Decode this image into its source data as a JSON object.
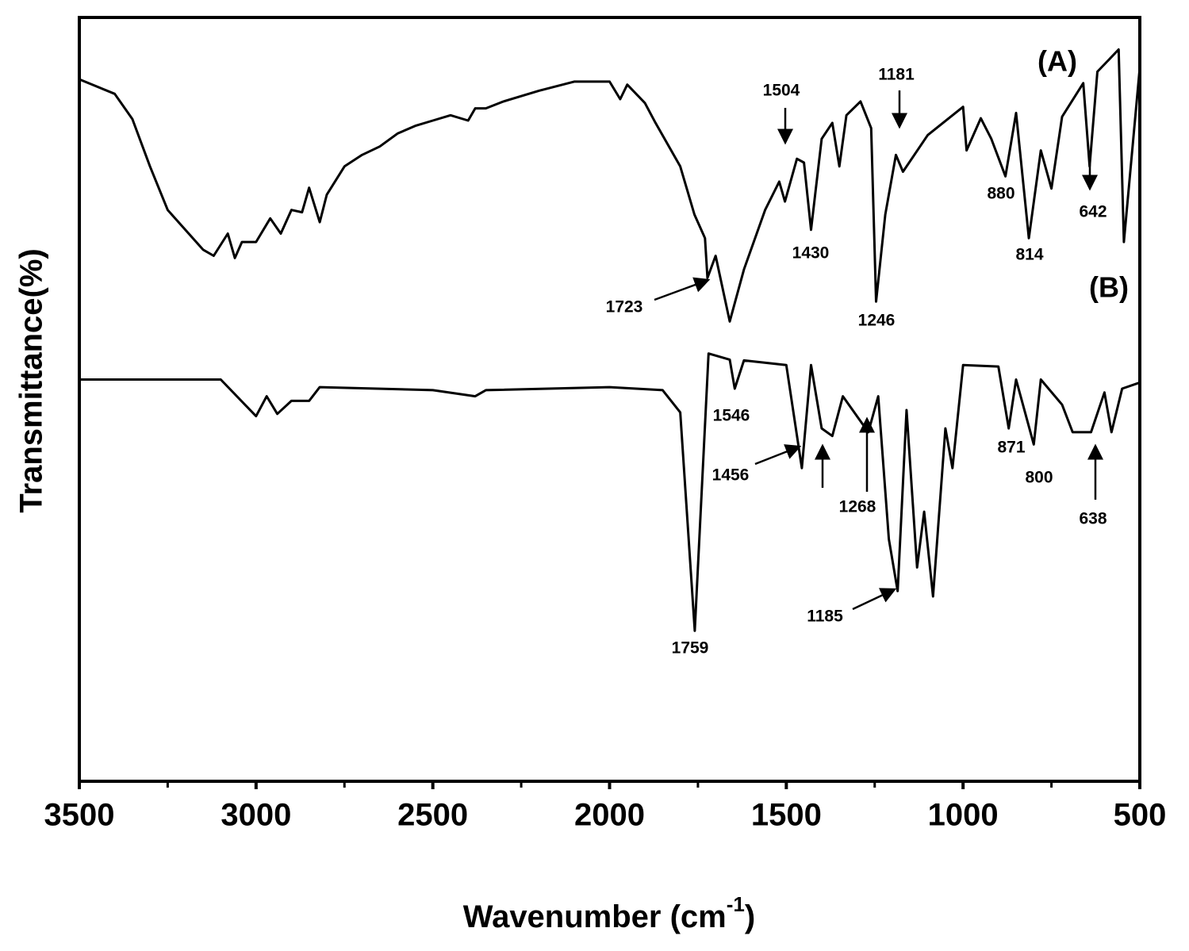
{
  "chart_data": {
    "type": "line",
    "y_label": "Transmittance(%)",
    "x_label": {
      "text": "Wavenumber (cm",
      "sup": "-1",
      "end": ")"
    },
    "xlim": [
      3500,
      500
    ],
    "xticks": [
      3500,
      3000,
      2500,
      2000,
      1500,
      1000,
      500
    ],
    "xminorticks": [
      3250,
      2750,
      2250,
      1750,
      1250,
      750
    ],
    "ylim": [
      0,
      100
    ],
    "series": [
      {
        "name": "(A)",
        "color": "#000000",
        "x": [
          3500,
          3400,
          3350,
          3300,
          3250,
          3200,
          3150,
          3120,
          3080,
          3060,
          3040,
          3000,
          2960,
          2930,
          2900,
          2870,
          2850,
          2820,
          2800,
          2750,
          2700,
          2650,
          2600,
          2550,
          2500,
          2450,
          2400,
          2380,
          2350,
          2300,
          2200,
          2100,
          2000,
          1970,
          1950,
          1900,
          1870,
          1800,
          1760,
          1730,
          1723,
          1700,
          1660,
          1620,
          1560,
          1520,
          1504,
          1470,
          1450,
          1430,
          1400,
          1370,
          1350,
          1330,
          1290,
          1260,
          1246,
          1220,
          1190,
          1170,
          1100,
          1000,
          990,
          950,
          920,
          880,
          850,
          814,
          780,
          750,
          720,
          660,
          642,
          620,
          560,
          545,
          500
        ],
        "y": [
          91.9,
          90.0,
          86.7,
          80.5,
          74.8,
          72.2,
          69.6,
          68.8,
          71.7,
          68.5,
          70.6,
          70.6,
          73.7,
          71.7,
          74.8,
          74.5,
          77.7,
          73.2,
          76.8,
          80.5,
          82.0,
          83.1,
          84.8,
          85.8,
          86.5,
          87.2,
          86.5,
          88.1,
          88.1,
          89.0,
          90.4,
          91.6,
          91.6,
          89.3,
          91.2,
          88.8,
          86.2,
          80.5,
          74.2,
          71.1,
          65.9,
          68.8,
          60.2,
          67.0,
          74.8,
          78.5,
          75.9,
          81.5,
          81.0,
          72.2,
          84.1,
          86.2,
          80.5,
          87.2,
          89.0,
          85.5,
          62.8,
          74.2,
          82.0,
          79.8,
          84.6,
          88.3,
          82.6,
          86.8,
          84.1,
          79.2,
          87.5,
          71.1,
          82.6,
          77.6,
          87.0,
          91.4,
          80.5,
          92.9,
          95.8,
          70.6,
          93.5
        ]
      },
      {
        "name": "(B)",
        "color": "#000000",
        "x": [
          3500,
          3100,
          3000,
          2970,
          2940,
          2900,
          2850,
          2820,
          2500,
          2380,
          2350,
          2000,
          1850,
          1800,
          1759,
          1720,
          1660,
          1646,
          1620,
          1500,
          1456,
          1430,
          1400,
          1370,
          1340,
          1268,
          1240,
          1210,
          1185,
          1160,
          1130,
          1110,
          1085,
          1050,
          1030,
          1000,
          900,
          871,
          850,
          800,
          780,
          720,
          690,
          638,
          600,
          580,
          550,
          500
        ],
        "y": [
          52.6,
          52.6,
          47.8,
          50.4,
          48.1,
          49.8,
          49.8,
          51.6,
          51.2,
          50.4,
          51.2,
          51.6,
          51.2,
          48.3,
          19.7,
          56.0,
          55.2,
          51.4,
          55.1,
          54.5,
          41.0,
          54.5,
          46.2,
          45.2,
          50.4,
          45.7,
          50.4,
          31.7,
          24.9,
          48.6,
          28.0,
          35.3,
          24.2,
          46.2,
          41.0,
          54.5,
          54.3,
          46.2,
          52.6,
          44.1,
          52.6,
          49.3,
          45.7,
          45.7,
          50.9,
          45.7,
          51.4,
          52.2
        ]
      }
    ],
    "annotations": [
      "1504",
      "1181",
      "880",
      "642",
      "1430",
      "814",
      "1723",
      "1246",
      "1546",
      "1456",
      "1268",
      "871",
      "800",
      "638",
      "1185",
      "1759"
    ]
  }
}
